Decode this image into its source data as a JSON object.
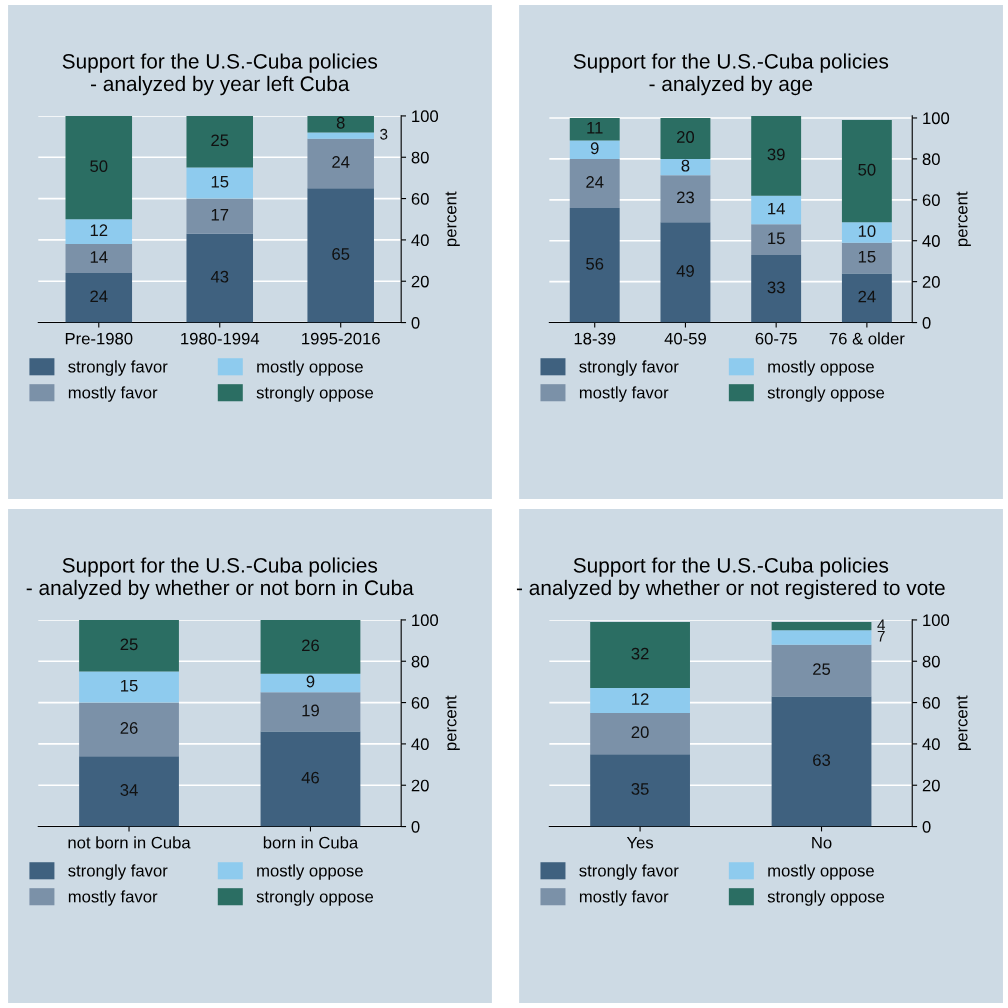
{
  "chart_data": [
    {
      "type": "bar",
      "title": "Support for the U.S.-Cuba policies\n- analyzed by year left Cuba",
      "ylabel": "percent",
      "categories": [
        "Pre-1980",
        "1980-1994",
        "1995-2016"
      ],
      "stacked": true,
      "ylim": [
        0,
        100
      ],
      "yticks": [
        0,
        20,
        40,
        60,
        80,
        100
      ],
      "grid": "y",
      "legend": "bottom",
      "data_labels": true,
      "series": [
        {
          "name": "strongly favor",
          "color": "#3f617f",
          "values": [
            24,
            43,
            65
          ]
        },
        {
          "name": "mostly favor",
          "color": "#7b91a8",
          "values": [
            14,
            17,
            24
          ]
        },
        {
          "name": "mostly oppose",
          "color": "#8ecbee",
          "values": [
            12,
            15,
            3
          ]
        },
        {
          "name": "strongly oppose",
          "color": "#2b6e63",
          "values": [
            50,
            25,
            8
          ]
        }
      ]
    },
    {
      "type": "bar",
      "title": "Support for the U.S.-Cuba policies\n- analyzed by age",
      "ylabel": "percent",
      "categories": [
        "18-39",
        "40-59",
        "60-75",
        "76 & older"
      ],
      "stacked": true,
      "ylim": [
        0,
        101
      ],
      "yticks": [
        0,
        20,
        40,
        60,
        80,
        100
      ],
      "grid": "y",
      "legend": "bottom",
      "data_labels": true,
      "series": [
        {
          "name": "strongly favor",
          "color": "#3f617f",
          "values": [
            56,
            49,
            33,
            24
          ]
        },
        {
          "name": "mostly favor",
          "color": "#7b91a8",
          "values": [
            24,
            23,
            15,
            15
          ]
        },
        {
          "name": "mostly oppose",
          "color": "#8ecbee",
          "values": [
            9,
            8,
            14,
            10
          ]
        },
        {
          "name": "strongly oppose",
          "color": "#2b6e63",
          "values": [
            11,
            20,
            39,
            50
          ]
        }
      ]
    },
    {
      "type": "bar",
      "title": "Support for the U.S.-Cuba policies\n- analyzed by whether or not born in Cuba",
      "ylabel": "percent",
      "categories": [
        "not born in Cuba",
        "born in Cuba"
      ],
      "stacked": true,
      "ylim": [
        0,
        100
      ],
      "yticks": [
        0,
        20,
        40,
        60,
        80,
        100
      ],
      "grid": "y",
      "legend": "bottom",
      "data_labels": true,
      "series": [
        {
          "name": "strongly favor",
          "color": "#3f617f",
          "values": [
            34,
            46
          ]
        },
        {
          "name": "mostly favor",
          "color": "#7b91a8",
          "values": [
            26,
            19
          ]
        },
        {
          "name": "mostly oppose",
          "color": "#8ecbee",
          "values": [
            15,
            9
          ]
        },
        {
          "name": "strongly oppose",
          "color": "#2b6e63",
          "values": [
            25,
            26
          ]
        }
      ]
    },
    {
      "type": "bar",
      "title": "Support for the U.S.-Cuba policies\n- analyzed by whether or not registered to vote",
      "ylabel": "percent",
      "categories": [
        "Yes",
        "No"
      ],
      "stacked": true,
      "ylim": [
        0,
        100
      ],
      "yticks": [
        0,
        20,
        40,
        60,
        80,
        100
      ],
      "grid": "y",
      "legend": "bottom",
      "data_labels": true,
      "series": [
        {
          "name": "strongly favor",
          "color": "#3f617f",
          "values": [
            35,
            63
          ]
        },
        {
          "name": "mostly favor",
          "color": "#7b91a8",
          "values": [
            20,
            25
          ]
        },
        {
          "name": "mostly oppose",
          "color": "#8ecbee",
          "values": [
            12,
            7
          ]
        },
        {
          "name": "strongly oppose",
          "color": "#2b6e63",
          "values": [
            32,
            4
          ]
        }
      ]
    }
  ]
}
